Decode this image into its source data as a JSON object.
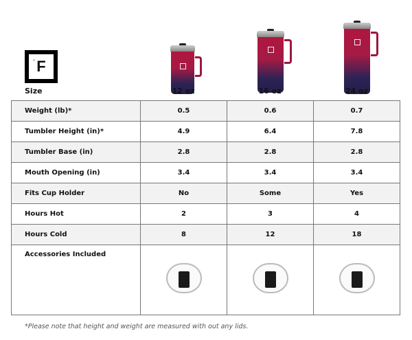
{
  "brand": {
    "logo_text": "F",
    "logo_degree": "°"
  },
  "header": {
    "size_label": "Size",
    "sizes": [
      "12 oz",
      "16 oz",
      "24 oz"
    ]
  },
  "rows": [
    {
      "label": "Weight (lb)*",
      "values": [
        "0.5",
        "0.6",
        "0.7"
      ]
    },
    {
      "label": "Tumbler Height (in)*",
      "values": [
        "4.9",
        "6.4",
        "7.8"
      ]
    },
    {
      "label": "Tumbler Base (in)",
      "values": [
        "2.8",
        "2.8",
        "2.8"
      ]
    },
    {
      "label": "Mouth Opening (in)",
      "values": [
        "3.4",
        "3.4",
        "3.4"
      ]
    },
    {
      "label": "Fits Cup Holder",
      "values": [
        "No",
        "Some",
        "Yes"
      ]
    },
    {
      "label": "Hours Hot",
      "values": [
        "2",
        "3",
        "4"
      ]
    },
    {
      "label": "Hours Cold",
      "values": [
        "8",
        "12",
        "18"
      ]
    }
  ],
  "accessories_label": "Accessories Included",
  "footnote": "*Please note that height and weight are measured with out any lids.",
  "colors": {
    "mug_top": "#b0173f",
    "mug_bottom": "#241f4a",
    "row_shade": "#f2f2f2"
  }
}
